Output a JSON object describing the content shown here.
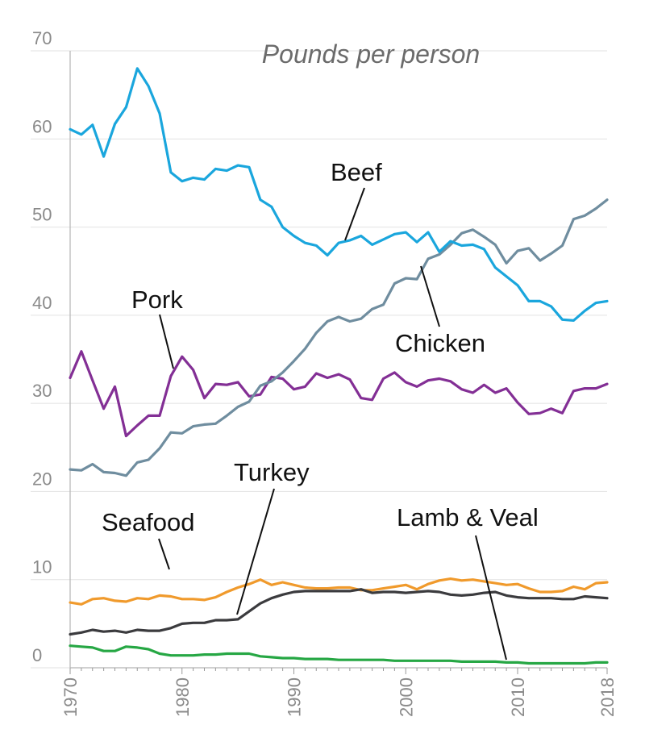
{
  "chart_data": {
    "type": "line",
    "title": "Pounds per person",
    "xlabel": "",
    "ylabel": "",
    "xlim": [
      1970,
      2018
    ],
    "ylim": [
      0,
      70
    ],
    "grid": true,
    "legend": "inline labels",
    "y_ticks": [
      0,
      10,
      20,
      30,
      40,
      50,
      60,
      70
    ],
    "y_tick_labels": [
      "0",
      "10",
      "20",
      "30",
      "40",
      "50",
      "60",
      "70"
    ],
    "x_ticks": [
      1970,
      1980,
      1990,
      2000,
      2010,
      2018
    ],
    "x_tick_labels": [
      "1970",
      "1980",
      "1990",
      "2000",
      "2010",
      "2018"
    ],
    "x": [
      1970,
      1971,
      1972,
      1973,
      1974,
      1975,
      1976,
      1977,
      1978,
      1979,
      1980,
      1981,
      1982,
      1983,
      1984,
      1985,
      1986,
      1987,
      1988,
      1989,
      1990,
      1991,
      1992,
      1993,
      1994,
      1995,
      1996,
      1997,
      1998,
      1999,
      2000,
      2001,
      2002,
      2003,
      2004,
      2005,
      2006,
      2007,
      2008,
      2009,
      2010,
      2011,
      2012,
      2013,
      2014,
      2015,
      2016,
      2017,
      2018
    ],
    "series": [
      {
        "name": "Beef",
        "color": "#1aa6dd",
        "values": [
          61.1,
          60.5,
          61.6,
          58.0,
          61.7,
          63.6,
          68.0,
          66.0,
          62.9,
          56.2,
          55.2,
          55.6,
          55.4,
          56.6,
          56.4,
          57.0,
          56.8,
          53.1,
          52.3,
          50.0,
          49.0,
          48.2,
          47.9,
          46.8,
          48.2,
          48.5,
          49.0,
          48.0,
          48.6,
          49.2,
          49.4,
          48.3,
          49.4,
          47.2,
          48.4,
          47.9,
          48.0,
          47.5,
          45.4,
          44.4,
          43.4,
          41.6,
          41.6,
          41.0,
          39.5,
          39.4,
          40.5,
          41.4,
          41.6
        ]
      },
      {
        "name": "Chicken",
        "color": "#6f8d9f",
        "values": [
          22.5,
          22.4,
          23.1,
          22.2,
          22.1,
          21.8,
          23.3,
          23.6,
          24.9,
          26.7,
          26.6,
          27.4,
          27.6,
          27.7,
          28.6,
          29.6,
          30.2,
          32.0,
          32.5,
          33.5,
          34.8,
          36.2,
          38.0,
          39.3,
          39.8,
          39.3,
          39.6,
          40.7,
          41.2,
          43.6,
          44.2,
          44.1,
          46.4,
          46.9,
          48.0,
          49.3,
          49.7,
          48.9,
          48.0,
          45.9,
          47.3,
          47.6,
          46.2,
          47.0,
          47.9,
          50.9,
          51.3,
          52.1,
          53.1
        ]
      },
      {
        "name": "Pork",
        "color": "#832f95",
        "values": [
          32.9,
          35.9,
          32.6,
          29.4,
          31.9,
          26.3,
          27.5,
          28.6,
          28.6,
          33.1,
          35.3,
          33.8,
          30.6,
          32.2,
          32.1,
          32.4,
          30.8,
          31.0,
          33.0,
          32.8,
          31.6,
          31.9,
          33.4,
          32.9,
          33.3,
          32.7,
          30.6,
          30.4,
          32.8,
          33.5,
          32.4,
          31.9,
          32.6,
          32.8,
          32.5,
          31.6,
          31.2,
          32.1,
          31.2,
          31.7,
          30.1,
          28.8,
          28.9,
          29.4,
          28.9,
          31.4,
          31.7,
          31.7,
          32.2
        ]
      },
      {
        "name": "Seafood",
        "color": "#f09a2c",
        "values": [
          7.4,
          7.2,
          7.8,
          7.9,
          7.6,
          7.5,
          7.9,
          7.8,
          8.2,
          8.1,
          7.8,
          7.8,
          7.7,
          8.0,
          8.6,
          9.1,
          9.5,
          10.0,
          9.4,
          9.7,
          9.4,
          9.1,
          9.0,
          9.0,
          9.1,
          9.1,
          8.8,
          8.8,
          9.0,
          9.2,
          9.4,
          8.9,
          9.5,
          9.9,
          10.1,
          9.9,
          10.0,
          9.8,
          9.6,
          9.4,
          9.5,
          9.0,
          8.6,
          8.6,
          8.7,
          9.2,
          8.9,
          9.6,
          9.7
        ]
      },
      {
        "name": "Turkey",
        "color": "#3b3b3e",
        "values": [
          3.8,
          4.0,
          4.3,
          4.1,
          4.2,
          4.0,
          4.3,
          4.2,
          4.2,
          4.5,
          5.0,
          5.1,
          5.1,
          5.4,
          5.4,
          5.5,
          6.4,
          7.3,
          7.9,
          8.3,
          8.6,
          8.7,
          8.7,
          8.7,
          8.7,
          8.7,
          8.9,
          8.5,
          8.6,
          8.6,
          8.5,
          8.6,
          8.7,
          8.6,
          8.3,
          8.2,
          8.3,
          8.5,
          8.6,
          8.2,
          8.0,
          7.9,
          7.9,
          7.9,
          7.8,
          7.8,
          8.1,
          8.0,
          7.9
        ]
      },
      {
        "name": "Lamb & Veal",
        "color": "#26a744",
        "values": [
          2.5,
          2.4,
          2.3,
          1.9,
          1.9,
          2.4,
          2.3,
          2.1,
          1.6,
          1.4,
          1.4,
          1.4,
          1.5,
          1.5,
          1.6,
          1.6,
          1.6,
          1.3,
          1.2,
          1.1,
          1.1,
          1.0,
          1.0,
          1.0,
          0.9,
          0.9,
          0.9,
          0.9,
          0.9,
          0.8,
          0.8,
          0.8,
          0.8,
          0.8,
          0.8,
          0.7,
          0.7,
          0.7,
          0.7,
          0.6,
          0.6,
          0.5,
          0.5,
          0.5,
          0.5,
          0.5,
          0.5,
          0.6,
          0.6
        ]
      }
    ]
  }
}
